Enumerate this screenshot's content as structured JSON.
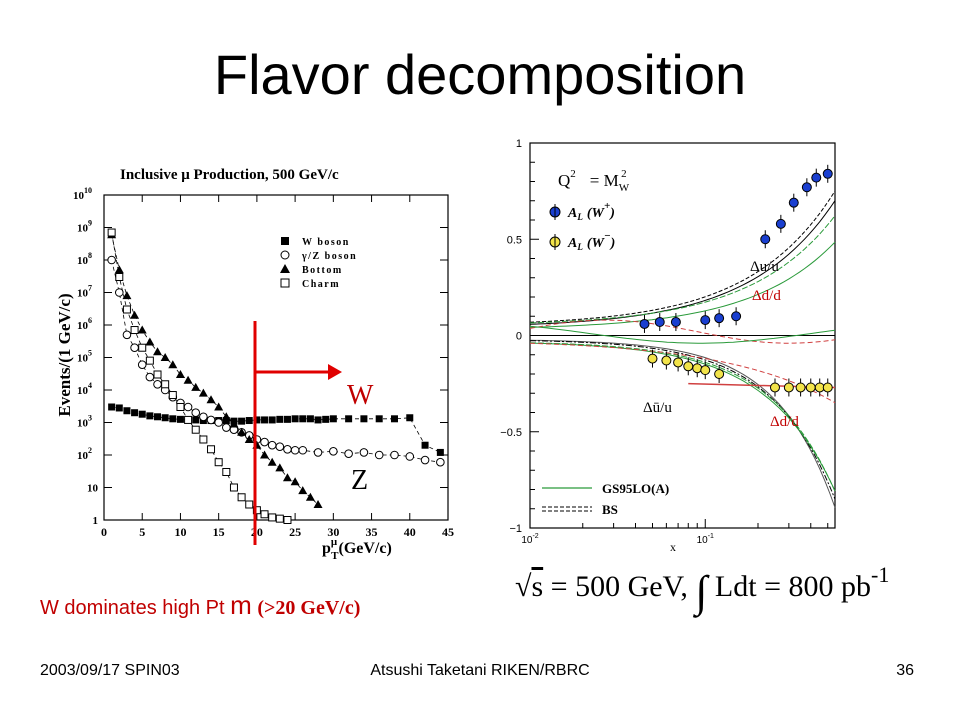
{
  "slide": {
    "title": "Flavor decomposition",
    "caption_main": "W dominates high Pt ",
    "caption_mu": "m",
    "caption_tail": "(>20 GeV/c)",
    "footer_left": "2003/09/17 SPIN03",
    "footer_center": "Atsushi Taketani RIKEN/RBRC",
    "footer_right": "36",
    "formula": {
      "sqrt_s": "s",
      "eq_part": " = 500 GeV, ",
      "integral": "∫",
      "lumi_part": " Ldt = 800 pb",
      "exponent": "-1"
    }
  },
  "left_plot": {
    "title": "Inclusive μ Production, 500 GeV/c",
    "ylabel": "Events/(1 GeV/c)",
    "xlabel": "p",
    "xlabel_sup": "μ",
    "xlabel_sub": "T",
    "xlabel_unit": "(GeV/c)",
    "legend": [
      "W boson",
      "γ/Z boson",
      "Bottom",
      "Charm"
    ],
    "annot_w": "W",
    "annot_z": "Z",
    "cut_color": "#e00000"
  },
  "right_plot": {
    "q2_label": "Q",
    "q2_eq": "= M",
    "q2_sub": "W",
    "legend": [
      "A",
      "L",
      "(W",
      "+",
      ")",
      "A",
      "L",
      "(W",
      "−",
      ")"
    ],
    "labels": [
      "Δu/u",
      "Δd/d",
      "Δū/u",
      "Δd/d"
    ],
    "model_legend": [
      "GS95LO(A)",
      "BS"
    ],
    "xlabel": "x",
    "wplus_color": "#1a3fd0",
    "wminus_color": "#f2e34a"
  },
  "chart_data": [
    {
      "type": "scatter",
      "title": "Inclusive μ Production, 500 GeV/c",
      "xlabel": "p_T^μ (GeV/c)",
      "ylabel": "Events/(1 GeV/c)",
      "xlim": [
        0,
        45
      ],
      "ylim": [
        1,
        10000000000
      ],
      "yscale": "log",
      "x_ticks": [
        "0",
        "5",
        "10",
        "15",
        "20",
        "25",
        "30",
        "35",
        "40",
        "45"
      ],
      "y_ticks": [
        "1",
        "10",
        "10^2",
        "10^3",
        "10^4",
        "10^5",
        "10^6",
        "10^7",
        "10^8",
        "10^9",
        "10^10"
      ],
      "series": [
        {
          "name": "W boson",
          "x": [
            1,
            2,
            3,
            4,
            5,
            6,
            7,
            8,
            9,
            10,
            11,
            12,
            13,
            14,
            15,
            16,
            17,
            18,
            19,
            20,
            21,
            22,
            23,
            24,
            25,
            26,
            27,
            28,
            29,
            30,
            32,
            34,
            36,
            38,
            40,
            42,
            44
          ],
          "y": [
            3000,
            2800,
            2300,
            2000,
            1800,
            1600,
            1500,
            1400,
            1300,
            1250,
            1200,
            1200,
            1150,
            1150,
            1150,
            1150,
            1100,
            1100,
            1150,
            1200,
            1200,
            1200,
            1250,
            1250,
            1300,
            1300,
            1300,
            1200,
            1250,
            1300,
            1300,
            1300,
            1300,
            1300,
            1400,
            200,
            120
          ]
        },
        {
          "name": "γ/Z boson",
          "x": [
            1,
            2,
            3,
            4,
            5,
            6,
            7,
            8,
            9,
            10,
            11,
            12,
            13,
            14,
            15,
            16,
            17,
            18,
            19,
            20,
            21,
            22,
            23,
            24,
            25,
            26,
            28,
            30,
            32,
            34,
            36,
            38,
            40,
            42,
            44
          ],
          "y": [
            100000000,
            10000000,
            500000,
            200000,
            60000,
            25000,
            15000,
            10000,
            6000,
            4000,
            3000,
            2000,
            1500,
            1200,
            1000,
            700,
            600,
            500,
            400,
            300,
            250,
            200,
            180,
            150,
            140,
            140,
            120,
            130,
            110,
            120,
            100,
            100,
            90,
            70,
            60
          ]
        },
        {
          "name": "Bottom",
          "x": [
            1,
            2,
            3,
            4,
            5,
            6,
            7,
            8,
            9,
            10,
            11,
            12,
            13,
            14,
            15,
            16,
            17,
            18,
            19,
            20,
            21,
            22,
            23,
            24,
            25,
            26,
            27,
            28
          ],
          "y": [
            600000000,
            50000000,
            8000000,
            2000000,
            700000,
            300000,
            150000,
            100000,
            60000,
            30000,
            20000,
            12000,
            8000,
            5000,
            3000,
            1500,
            900,
            500,
            300,
            200,
            100,
            60,
            40,
            20,
            15,
            8,
            5,
            3
          ]
        },
        {
          "name": "Charm",
          "x": [
            1,
            2,
            3,
            4,
            5,
            6,
            7,
            8,
            9,
            10,
            11,
            12,
            13,
            14,
            15,
            16,
            17,
            18,
            19,
            20,
            21,
            22,
            23,
            24
          ],
          "y": [
            700000000,
            30000000,
            3000000,
            700000,
            200000,
            80000,
            30000,
            15000,
            7000,
            3000,
            1200,
            600,
            300,
            150,
            60,
            30,
            10,
            5,
            3,
            2,
            1.5,
            1.2,
            1.1,
            1
          ]
        }
      ],
      "annotations": [
        "W",
        "Z"
      ]
    },
    {
      "type": "line",
      "xlabel": "x",
      "xscale": "log",
      "xlim": [
        0.01,
        0.55
      ],
      "ylim": [
        -1,
        1
      ],
      "x_ticks": [
        "10^-2",
        "10^-1"
      ],
      "y_ticks": [
        "1",
        "0.5",
        "0",
        "−0.5",
        "−1"
      ],
      "series": [
        {
          "name": "A_L(W+)",
          "x": [
            0.045,
            0.055,
            0.068,
            0.1,
            0.12,
            0.15,
            0.22,
            0.27,
            0.32,
            0.38,
            0.43,
            0.5
          ],
          "y": [
            0.06,
            0.07,
            0.07,
            0.08,
            0.09,
            0.1,
            0.5,
            0.58,
            0.69,
            0.77,
            0.82,
            0.84
          ]
        },
        {
          "name": "A_L(W-)",
          "x": [
            0.05,
            0.06,
            0.07,
            0.08,
            0.09,
            0.1,
            0.12,
            0.25,
            0.3,
            0.35,
            0.4,
            0.45,
            0.5
          ],
          "y": [
            -0.12,
            -0.13,
            -0.14,
            -0.16,
            -0.17,
            -0.18,
            -0.2,
            -0.27,
            -0.27,
            -0.27,
            -0.27,
            -0.27,
            -0.27
          ]
        }
      ],
      "annotations": [
        "Q² = M_W²",
        "Δu/u",
        "Δd/d",
        "Δū/u",
        "Δd/d",
        "GS95LO(A)",
        "BS"
      ]
    }
  ]
}
